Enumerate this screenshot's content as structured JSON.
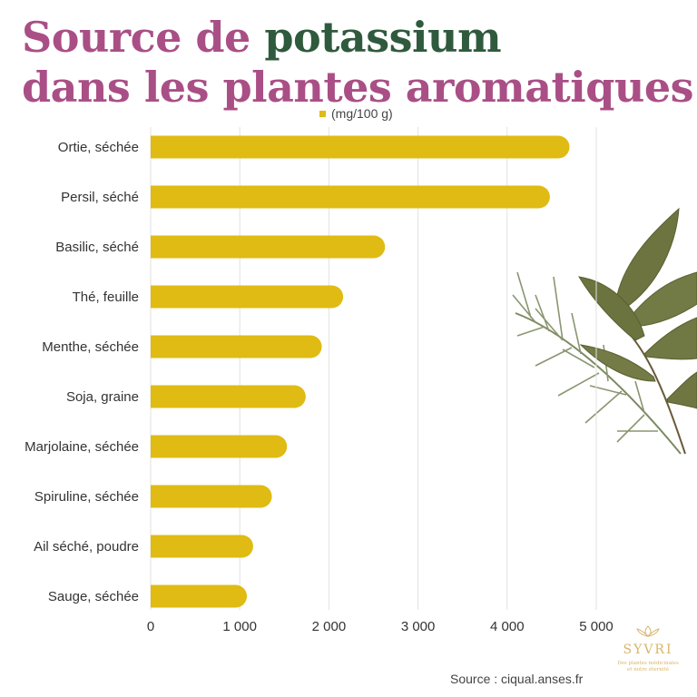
{
  "title": {
    "part1": "Source de ",
    "part2": "potassium",
    "line2": "dans les plantes aromatiques"
  },
  "legend": {
    "label": "(mg/100 g)"
  },
  "source": "Source : ciqual.anses.fr",
  "logo": {
    "brand": "SYVRI",
    "tagline": "Des plantes médicinales et notre éternité"
  },
  "colors": {
    "bar": "#dfbb13",
    "title_pink": "#a94f86",
    "title_green": "#2f5a3d",
    "grid": "#e2e2e2"
  },
  "chart_data": {
    "type": "bar",
    "orientation": "horizontal",
    "categories": [
      "Ortie, séchée",
      "Persil, séché",
      "Basilic, séché",
      "Thé, feuille",
      "Menthe, séchée",
      "Soja, graine",
      "Marjolaine, séchée",
      "Spiruline, séchée",
      "Ail séché, poudre",
      "Sauge, séchée"
    ],
    "series": [
      {
        "name": "(mg/100 g)",
        "values": [
          4700,
          4480,
          2630,
          2160,
          1920,
          1740,
          1530,
          1360,
          1150,
          1080
        ]
      }
    ],
    "xlim": [
      0,
      5000
    ],
    "xticks": [
      0,
      1000,
      2000,
      3000,
      4000,
      5000
    ],
    "xtick_labels": [
      "0",
      "1 000",
      "2 000",
      "3 000",
      "4 000",
      "5 000"
    ],
    "grid": true,
    "legend_position": "top-center"
  }
}
